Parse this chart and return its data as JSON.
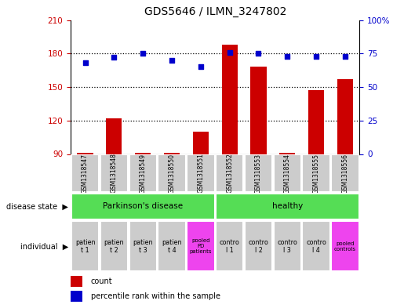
{
  "title": "GDS5646 / ILMN_3247802",
  "samples": [
    "GSM1318547",
    "GSM1318548",
    "GSM1318549",
    "GSM1318550",
    "GSM1318551",
    "GSM1318552",
    "GSM1318553",
    "GSM1318554",
    "GSM1318555",
    "GSM1318556"
  ],
  "counts": [
    91,
    122,
    91,
    91,
    110,
    188,
    168,
    91,
    147,
    157
  ],
  "percentile_ranks": [
    68,
    72,
    75,
    70,
    65,
    76,
    75,
    73,
    73,
    73
  ],
  "ylim_left": [
    90,
    210
  ],
  "ylim_right": [
    0,
    100
  ],
  "yticks_left": [
    90,
    120,
    150,
    180,
    210
  ],
  "yticks_right": [
    0,
    25,
    50,
    75,
    100
  ],
  "ytick_labels_right": [
    "0",
    "25",
    "50",
    "75",
    "100%"
  ],
  "bar_color": "#cc0000",
  "dot_color": "#0000cc",
  "gsm_bg_color": "#cccccc",
  "disease_state_bg_parkinsons": "#55dd55",
  "disease_state_bg_healthy": "#55dd55",
  "individual_bg_normal": "#cccccc",
  "individual_bg_pooled": "#ee44ee",
  "legend_count_color": "#cc0000",
  "legend_percentile_color": "#0000cc",
  "spine_color": "#000000"
}
